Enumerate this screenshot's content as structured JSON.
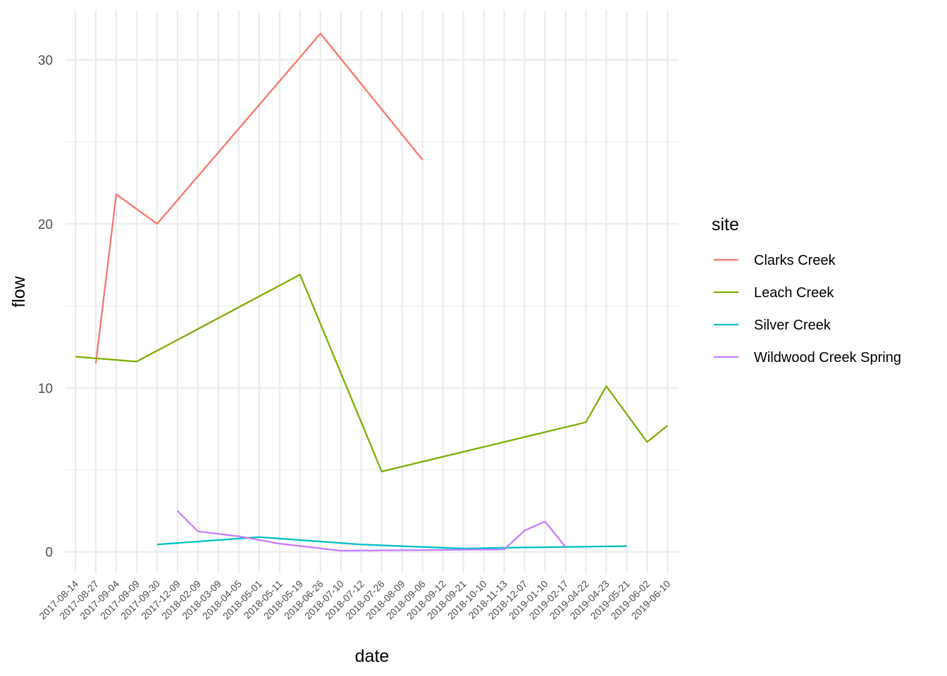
{
  "chart_data": {
    "type": "line",
    "title": "",
    "xlabel": "date",
    "ylabel": "flow",
    "x_type": "categorical",
    "categories": [
      "2017-08-14",
      "2017-08-27",
      "2017-09-04",
      "2017-09-09",
      "2017-09-30",
      "2017-12-09",
      "2018-02-09",
      "2018-03-09",
      "2018-04-05",
      "2018-05-01",
      "2018-05-11",
      "2018-05-19",
      "2018-06-26",
      "2018-07-10",
      "2018-07-12",
      "2018-07-26",
      "2018-08-09",
      "2018-09-06",
      "2018-09-12",
      "2018-09-21",
      "2018-10-10",
      "2018-11-13",
      "2018-12-07",
      "2019-01-10",
      "2019-02-17",
      "2019-04-22",
      "2019-04-23",
      "2019-05-21",
      "2019-06-02",
      "2019-06-10"
    ],
    "ylim": [
      -1.3,
      33.0
    ],
    "y_major_ticks": [
      0,
      10,
      20,
      30
    ],
    "y_minor_ticks": [
      5,
      15,
      25
    ],
    "grid": true,
    "legend": {
      "title": "site",
      "position": "right"
    },
    "series": [
      {
        "name": "Clarks Creek",
        "color": "#F8766D",
        "points": [
          {
            "x": "2017-08-27",
            "y": 11.5
          },
          {
            "x": "2017-09-04",
            "y": 21.8
          },
          {
            "x": "2017-09-30",
            "y": 20.0
          },
          {
            "x": "2018-06-26",
            "y": 31.6
          },
          {
            "x": "2018-09-06",
            "y": 23.9
          }
        ]
      },
      {
        "name": "Leach Creek",
        "color": "#7CAE00",
        "points": [
          {
            "x": "2017-08-14",
            "y": 11.9
          },
          {
            "x": "2017-09-09",
            "y": 11.6
          },
          {
            "x": "2018-05-19",
            "y": 16.9
          },
          {
            "x": "2018-07-26",
            "y": 4.9
          },
          {
            "x": "2019-04-22",
            "y": 7.9
          },
          {
            "x": "2019-04-23",
            "y": 10.1
          },
          {
            "x": "2019-06-02",
            "y": 6.7
          },
          {
            "x": "2019-06-10",
            "y": 7.7
          }
        ]
      },
      {
        "name": "Silver Creek",
        "color": "#00BFC4",
        "points": [
          {
            "x": "2017-09-30",
            "y": 0.45
          },
          {
            "x": "2018-05-01",
            "y": 0.9
          },
          {
            "x": "2018-07-12",
            "y": 0.45
          },
          {
            "x": "2018-09-21",
            "y": 0.2
          },
          {
            "x": "2018-11-13",
            "y": 0.25
          },
          {
            "x": "2019-05-21",
            "y": 0.35
          }
        ]
      },
      {
        "name": "Wildwood Creek Spring",
        "color": "#C77CFF",
        "points": [
          {
            "x": "2017-12-09",
            "y": 2.5
          },
          {
            "x": "2018-02-09",
            "y": 1.25
          },
          {
            "x": "2018-04-05",
            "y": 0.95
          },
          {
            "x": "2018-05-11",
            "y": 0.5
          },
          {
            "x": "2018-07-10",
            "y": 0.07
          },
          {
            "x": "2018-11-13",
            "y": 0.15
          },
          {
            "x": "2018-12-07",
            "y": 1.3
          },
          {
            "x": "2019-01-10",
            "y": 1.85
          },
          {
            "x": "2019-02-17",
            "y": 0.3
          }
        ]
      }
    ]
  }
}
